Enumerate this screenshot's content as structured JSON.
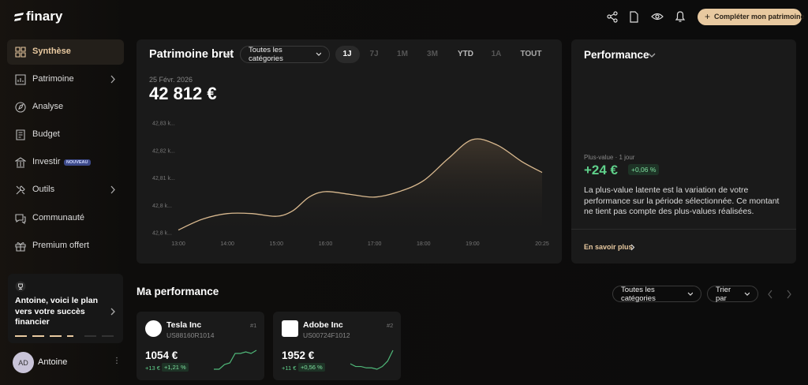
{
  "brand": "finary",
  "topbar": {
    "cta": "Compléter mon patrimoine"
  },
  "sidebar": {
    "items": [
      "Synthèse",
      "Patrimoine",
      "Analyse",
      "Budget",
      "Investir",
      "Outils",
      "Communauté",
      "Premium offert"
    ],
    "badge": "NOUVEAU",
    "plan_card": "Antoine, voici le plan vers votre succès financier",
    "user": {
      "initials": "AD",
      "name": "Antoine"
    }
  },
  "patrimoine": {
    "title": "Patrimoine brut",
    "filter": "Toutes les catégories",
    "periods": [
      "1J",
      "7J",
      "1M",
      "3M",
      "YTD",
      "1A",
      "TOUT"
    ],
    "date": "25 Févr. 2026",
    "total": "42 812 €",
    "chart": {
      "type": "area",
      "x": [
        "13:00",
        "13:30",
        "14:00",
        "14:30",
        "15:00",
        "15:20",
        "15:40",
        "16:00",
        "16:30",
        "17:00",
        "17:30",
        "18:00",
        "18:30",
        "19:00",
        "19:30",
        "20:00",
        "20:25"
      ],
      "values": [
        42791,
        42795,
        42797,
        42797,
        42796,
        42798,
        42803,
        42805,
        42804,
        42803,
        42805,
        42809,
        42817,
        42824,
        42822,
        42816,
        42812
      ],
      "color": "#d9b98f",
      "xlim": [
        "13:00",
        "20:25"
      ],
      "xticks": [
        "13:00",
        "14:00",
        "15:00",
        "16:00",
        "17:00",
        "18:00",
        "19:00",
        "20:25"
      ],
      "ylim": [
        42790,
        42830
      ],
      "yticks": [
        {
          "value": 42830,
          "label": "42,83 k..."
        },
        {
          "value": 42820,
          "label": "42,82 k..."
        },
        {
          "value": 42810,
          "label": "42,81 k..."
        },
        {
          "value": 42800,
          "label": "42,8 k..."
        },
        {
          "value": 42790,
          "label": "42,8 k..."
        }
      ]
    }
  },
  "performance": {
    "title": "Performance",
    "label": "Plus-value · 1 jour",
    "value": "+24 €",
    "pct": "+0,06 %",
    "description": "La plus-value latente est la variation de votre performance sur la période sélectionnée. Ce montant ne tient pas compte des plus-values réalisées.",
    "link": "En savoir plus"
  },
  "ma_performance": {
    "title": "Ma performance",
    "filter": "Toutes les catégories",
    "sort": "Trier par",
    "cards": [
      {
        "rank": "#1",
        "name": "Tesla Inc",
        "isin": "US88160R1014",
        "value": "1054 €",
        "change": "+13 €",
        "pct": "+1,21 %",
        "spark": [
          2,
          2,
          5,
          6,
          12,
          12,
          13,
          12,
          14
        ]
      },
      {
        "rank": "#2",
        "name": "Adobe Inc",
        "isin": "US00724F1012",
        "value": "1952 €",
        "change": "+11 €",
        "pct": "+0,56 %",
        "spark": [
          6,
          4,
          4,
          3,
          3,
          2,
          4,
          8,
          16
        ]
      }
    ]
  }
}
